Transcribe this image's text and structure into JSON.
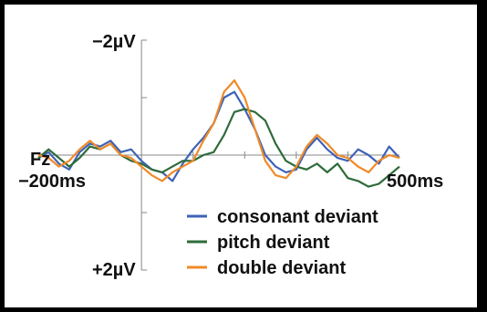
{
  "chart_data": {
    "type": "line",
    "channel": "Fz",
    "x_unit": "ms",
    "y_unit": "µV",
    "y_inverted": true,
    "xlim": [
      -200,
      500
    ],
    "ylim": [
      -2,
      2
    ],
    "x_labels": {
      "start": "−200ms",
      "end": "500ms"
    },
    "y_labels": {
      "top": "−2µV",
      "bottom": "+2µV"
    },
    "channel_label": "Fz",
    "y_ticks": [
      -2,
      -1,
      0,
      1,
      2
    ],
    "legend_position": "bottom-right",
    "series": [
      {
        "name": "consonant deviant",
        "color": "#3d63b7",
        "x": [
          -200,
          -180,
          -160,
          -140,
          -120,
          -100,
          -80,
          -60,
          -40,
          -20,
          0,
          20,
          40,
          60,
          80,
          100,
          120,
          140,
          160,
          180,
          200,
          220,
          240,
          260,
          280,
          300,
          320,
          340,
          360,
          380,
          400,
          420,
          440,
          460,
          480,
          500
        ],
        "y": [
          0.05,
          -0.05,
          0.15,
          0.25,
          -0.05,
          -0.2,
          -0.15,
          -0.25,
          -0.05,
          -0.1,
          0.1,
          0.25,
          0.3,
          0.45,
          0.15,
          -0.1,
          -0.3,
          -0.55,
          -1.0,
          -1.1,
          -0.8,
          -0.45,
          0.0,
          0.2,
          0.3,
          0.25,
          -0.1,
          -0.3,
          -0.1,
          0.05,
          0.1,
          -0.1,
          0.0,
          0.15,
          -0.15,
          0.05
        ]
      },
      {
        "name": "pitch deviant",
        "color": "#2e6b3a",
        "x": [
          -200,
          -180,
          -160,
          -140,
          -120,
          -100,
          -80,
          -60,
          -40,
          -20,
          0,
          20,
          40,
          60,
          80,
          100,
          120,
          140,
          160,
          180,
          200,
          220,
          240,
          260,
          280,
          300,
          320,
          340,
          360,
          380,
          400,
          420,
          440,
          460,
          480,
          500
        ],
        "y": [
          0.05,
          -0.1,
          0.05,
          0.2,
          0.05,
          -0.15,
          -0.1,
          -0.2,
          0.0,
          0.1,
          0.15,
          0.25,
          0.3,
          0.2,
          0.1,
          0.1,
          0.0,
          -0.05,
          -0.35,
          -0.75,
          -0.8,
          -0.75,
          -0.6,
          -0.2,
          0.1,
          0.2,
          0.25,
          0.15,
          0.3,
          0.15,
          0.4,
          0.45,
          0.55,
          0.5,
          0.35,
          0.2
        ]
      },
      {
        "name": "double deviant",
        "color": "#f08a28",
        "x": [
          -200,
          -180,
          -160,
          -140,
          -120,
          -100,
          -80,
          -60,
          -40,
          -20,
          0,
          20,
          40,
          60,
          80,
          100,
          120,
          140,
          160,
          180,
          200,
          220,
          240,
          260,
          280,
          300,
          320,
          340,
          360,
          380,
          400,
          420,
          440,
          460,
          480,
          500
        ],
        "y": [
          0.0,
          0.05,
          0.2,
          0.1,
          -0.1,
          -0.25,
          -0.1,
          -0.2,
          0.0,
          0.05,
          0.2,
          0.35,
          0.45,
          0.3,
          0.2,
          0.1,
          -0.25,
          -0.55,
          -1.1,
          -1.3,
          -1.0,
          -0.45,
          0.1,
          0.35,
          0.4,
          0.2,
          -0.15,
          -0.35,
          -0.2,
          0.0,
          0.05,
          0.2,
          0.3,
          0.1,
          0.0,
          0.05
        ]
      }
    ]
  }
}
